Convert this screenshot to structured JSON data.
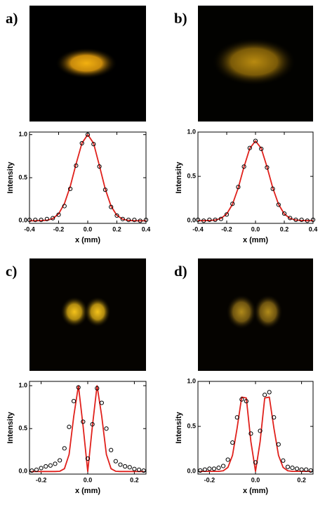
{
  "chart_data": [
    {
      "type": "line",
      "label": "a)",
      "xlabel": "x (mm)",
      "ylabel": "Intensity",
      "x": [
        -0.4,
        -0.36,
        -0.32,
        -0.28,
        -0.24,
        -0.2,
        -0.16,
        -0.12,
        -0.08,
        -0.04,
        0,
        0.04,
        0.08,
        0.12,
        0.16,
        0.2,
        0.24,
        0.28,
        0.32,
        0.36,
        0.4
      ],
      "series": [
        {
          "color": "#000000",
          "marker": "circle",
          "values": [
            0.01,
            0.01,
            0.01,
            0.02,
            0.03,
            0.07,
            0.17,
            0.37,
            0.64,
            0.9,
            1.0,
            0.89,
            0.63,
            0.36,
            0.16,
            0.06,
            0.02,
            0.01,
            0.01,
            0.0,
            0.01
          ]
        },
        {
          "color": "#e0201b",
          "values": [
            0,
            0,
            0.002,
            0.006,
            0.025,
            0.08,
            0.2,
            0.4,
            0.66,
            0.9,
            1.0,
            0.9,
            0.64,
            0.37,
            0.17,
            0.063,
            0.018,
            0.004,
            0,
            0,
            0
          ]
        }
      ],
      "xlim": [
        -0.4,
        0.4
      ],
      "xticks": [
        -0.4,
        -0.2,
        {
          "value": 0,
          "label": "0.0"
        },
        0.2,
        0.4
      ],
      "ylim": [
        -0.03,
        1.03
      ],
      "yticks": [
        {
          "value": 0,
          "label": "0.0"
        },
        0.5,
        {
          "value": 1,
          "label": "1.0"
        }
      ]
    },
    {
      "type": "line",
      "label": "b)",
      "xlabel": "x (mm)",
      "ylabel": "Intensity",
      "x": [
        -0.4,
        -0.36,
        -0.32,
        -0.28,
        -0.24,
        -0.2,
        -0.16,
        -0.12,
        -0.08,
        -0.04,
        0,
        0.04,
        0.08,
        0.12,
        0.16,
        0.2,
        0.24,
        0.28,
        0.32,
        0.36,
        0.4
      ],
      "series": [
        {
          "color": "#000000",
          "marker": "circle",
          "values": [
            0.01,
            0.0,
            0.01,
            0.01,
            0.02,
            0.07,
            0.19,
            0.38,
            0.61,
            0.82,
            0.9,
            0.81,
            0.6,
            0.36,
            0.18,
            0.08,
            0.03,
            0.01,
            0.01,
            0.0,
            0.01
          ]
        },
        {
          "color": "#e0201b",
          "values": [
            0,
            0,
            0.002,
            0.007,
            0.026,
            0.076,
            0.185,
            0.37,
            0.607,
            0.815,
            0.9,
            0.815,
            0.607,
            0.37,
            0.185,
            0.076,
            0.026,
            0.007,
            0.002,
            0,
            0
          ]
        }
      ],
      "xlim": [
        -0.4,
        0.4
      ],
      "xticks": [
        -0.4,
        -0.2,
        {
          "value": 0,
          "label": "0.0"
        },
        0.2,
        0.4
      ],
      "ylim": [
        -0.03,
        1.0
      ],
      "yticks": [
        {
          "value": 0,
          "label": "0.0"
        },
        0.5,
        {
          "value": 1,
          "label": "1.0"
        }
      ]
    },
    {
      "type": "line",
      "label": "c)",
      "xlabel": "x (mm)",
      "ylabel": "Intensity",
      "x": [
        -0.24,
        -0.22,
        -0.2,
        -0.18,
        -0.16,
        -0.14,
        -0.12,
        -0.1,
        -0.08,
        -0.06,
        -0.04,
        -0.02,
        0,
        0.02,
        0.04,
        0.06,
        0.08,
        0.1,
        0.12,
        0.14,
        0.16,
        0.18,
        0.2,
        0.22,
        0.24
      ],
      "series": [
        {
          "color": "#000000",
          "marker": "circle",
          "values": [
            0.01,
            0.02,
            0.04,
            0.06,
            0.07,
            0.09,
            0.13,
            0.27,
            0.52,
            0.82,
            0.98,
            0.58,
            0.15,
            0.55,
            0.97,
            0.8,
            0.5,
            0.25,
            0.12,
            0.08,
            0.06,
            0.05,
            0.03,
            0.02,
            0.01
          ]
        },
        {
          "color": "#e0201b",
          "values": [
            0,
            0,
            0,
            0,
            0,
            0,
            0.003,
            0.033,
            0.199,
            0.645,
            1.0,
            0.529,
            0,
            0.529,
            1.0,
            0.645,
            0.199,
            0.033,
            0.003,
            0,
            0,
            0,
            0,
            0,
            0
          ]
        }
      ],
      "xlim": [
        -0.25,
        0.25
      ],
      "xticks": [
        -0.2,
        {
          "value": 0,
          "label": "0.0"
        },
        0.2
      ],
      "ylim": [
        -0.03,
        1.05
      ],
      "yticks": [
        {
          "value": 0,
          "label": "0.0"
        },
        0.5,
        {
          "value": 1,
          "label": "1.0"
        }
      ]
    },
    {
      "type": "line",
      "label": "d)",
      "xlabel": "x (mm)",
      "ylabel": "Intensity",
      "x": [
        -0.24,
        -0.22,
        -0.2,
        -0.18,
        -0.16,
        -0.14,
        -0.12,
        -0.1,
        -0.08,
        -0.06,
        -0.04,
        -0.02,
        0,
        0.02,
        0.04,
        0.06,
        0.08,
        0.1,
        0.12,
        0.14,
        0.16,
        0.18,
        0.2,
        0.22,
        0.24
      ],
      "series": [
        {
          "color": "#000000",
          "marker": "circle",
          "values": [
            0.01,
            0.02,
            0.03,
            0.03,
            0.04,
            0.06,
            0.13,
            0.32,
            0.6,
            0.8,
            0.78,
            0.42,
            0.1,
            0.45,
            0.85,
            0.88,
            0.6,
            0.3,
            0.12,
            0.05,
            0.04,
            0.03,
            0.02,
            0.02,
            0.01
          ]
        },
        {
          "color": "#e0201b",
          "values": [
            0,
            0,
            0,
            0,
            0,
            0.007,
            0.044,
            0.177,
            0.479,
            0.825,
            0.816,
            0.33,
            0,
            0.33,
            0.816,
            0.825,
            0.479,
            0.177,
            0.044,
            0.007,
            0,
            0,
            0,
            0,
            0
          ]
        }
      ],
      "xlim": [
        -0.25,
        0.25
      ],
      "xticks": [
        -0.2,
        {
          "value": 0,
          "label": "0.0"
        },
        0.2
      ],
      "ylim": [
        -0.03,
        1.0
      ],
      "yticks": [
        {
          "value": 0,
          "label": "0.0"
        },
        0.5,
        {
          "value": 1,
          "label": "1.0"
        }
      ]
    }
  ]
}
